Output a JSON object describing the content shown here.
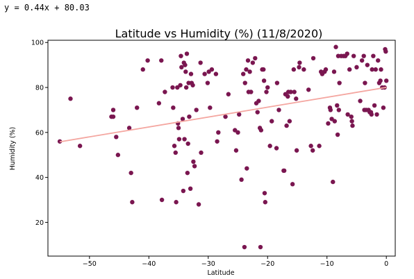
{
  "equation": "y = 0.44x + 80.03",
  "chart_data": {
    "type": "scatter",
    "title": "Latitude vs Humidity (%) (11/8/2020)",
    "xlabel": "Latitude",
    "ylabel": "Humidity (%)",
    "xlim": [
      -57,
      1.5
    ],
    "ylim": [
      5,
      101
    ],
    "xticks": [
      -50,
      -40,
      -30,
      -20,
      -10,
      0
    ],
    "yticks": [
      20,
      40,
      60,
      80,
      100
    ],
    "grid": false,
    "point_color": "#7a1650",
    "regression": {
      "slope": 0.44,
      "intercept": 80.03,
      "x_range": [
        -55,
        0
      ],
      "color": "#f4a6a0"
    },
    "points": [
      [
        -55,
        56
      ],
      [
        -53.2,
        75
      ],
      [
        -51.6,
        54
      ],
      [
        -46.3,
        67
      ],
      [
        -46,
        70
      ],
      [
        -46,
        67
      ],
      [
        -45.5,
        58
      ],
      [
        -45.2,
        50
      ],
      [
        -43.3,
        62
      ],
      [
        -43,
        42
      ],
      [
        -42.8,
        29
      ],
      [
        -42,
        71
      ],
      [
        -41,
        88
      ],
      [
        -40.2,
        92
      ],
      [
        -38.3,
        73
      ],
      [
        -37.9,
        92
      ],
      [
        -37.8,
        30
      ],
      [
        -37.3,
        78
      ],
      [
        -36,
        80
      ],
      [
        -35.9,
        71
      ],
      [
        -35.7,
        54
      ],
      [
        -35.5,
        51
      ],
      [
        -35.4,
        29
      ],
      [
        -35.2,
        80
      ],
      [
        -35.1,
        64
      ],
      [
        -35,
        62
      ],
      [
        -34.9,
        57
      ],
      [
        -34.7,
        81
      ],
      [
        -34.6,
        94
      ],
      [
        -34.5,
        89
      ],
      [
        -34.3,
        66
      ],
      [
        -34.2,
        34
      ],
      [
        -34.1,
        91
      ],
      [
        -34,
        57
      ],
      [
        -33.9,
        90
      ],
      [
        -33.8,
        87
      ],
      [
        -33.7,
        80
      ],
      [
        -33.6,
        95
      ],
      [
        -33.5,
        42
      ],
      [
        -33.4,
        55
      ],
      [
        -33.3,
        82
      ],
      [
        -33.2,
        67
      ],
      [
        -33,
        35
      ],
      [
        -32.9,
        86
      ],
      [
        -32.8,
        82
      ],
      [
        -32.6,
        81
      ],
      [
        -32.5,
        47
      ],
      [
        -32.3,
        45
      ],
      [
        -32,
        70
      ],
      [
        -31.6,
        28
      ],
      [
        -31.3,
        91
      ],
      [
        -31.2,
        51
      ],
      [
        -30.6,
        86
      ],
      [
        -30.1,
        82
      ],
      [
        -29.9,
        87
      ],
      [
        -29.7,
        71
      ],
      [
        -29.4,
        88
      ],
      [
        -28.7,
        86
      ],
      [
        -28.5,
        56
      ],
      [
        -28.3,
        60
      ],
      [
        -27.1,
        67
      ],
      [
        -26.6,
        77
      ],
      [
        -25.5,
        61
      ],
      [
        -25.3,
        52
      ],
      [
        -25,
        60
      ],
      [
        -24.8,
        68
      ],
      [
        -24.4,
        39
      ],
      [
        -24.1,
        86
      ],
      [
        -23.9,
        9
      ],
      [
        -23.8,
        82
      ],
      [
        -23.6,
        88
      ],
      [
        -23.5,
        44
      ],
      [
        -23.3,
        92
      ],
      [
        -23.2,
        78
      ],
      [
        -23,
        87
      ],
      [
        -22.8,
        78
      ],
      [
        -22.5,
        91
      ],
      [
        -22.1,
        93
      ],
      [
        -21.9,
        73
      ],
      [
        -21.7,
        69
      ],
      [
        -21.5,
        74
      ],
      [
        -21.3,
        62
      ],
      [
        -21.2,
        9
      ],
      [
        -21.1,
        61
      ],
      [
        -20.9,
        88
      ],
      [
        -20.7,
        88
      ],
      [
        -20.6,
        83
      ],
      [
        -20.5,
        33
      ],
      [
        -20.4,
        29
      ],
      [
        -20.2,
        78
      ],
      [
        -20,
        80
      ],
      [
        -19.6,
        54
      ],
      [
        -19.3,
        65
      ],
      [
        -18.5,
        53
      ],
      [
        -18.4,
        82
      ],
      [
        -18.1,
        70
      ],
      [
        -17.3,
        43
      ],
      [
        -17.2,
        43
      ],
      [
        -17,
        77
      ],
      [
        -16.8,
        63
      ],
      [
        -16.6,
        76
      ],
      [
        -16.5,
        78
      ],
      [
        -16.3,
        65
      ],
      [
        -16.1,
        78
      ],
      [
        -15.8,
        37
      ],
      [
        -15.6,
        88
      ],
      [
        -15.5,
        78
      ],
      [
        -15.2,
        75
      ],
      [
        -15.1,
        52
      ],
      [
        -14.7,
        89
      ],
      [
        -14.6,
        91
      ],
      [
        -13.9,
        88
      ],
      [
        -13.1,
        79
      ],
      [
        -12.7,
        54
      ],
      [
        -12.4,
        52
      ],
      [
        -12.3,
        93
      ],
      [
        -11.3,
        54
      ],
      [
        -11,
        87
      ],
      [
        -10.8,
        86
      ],
      [
        -10.4,
        87
      ],
      [
        -10.2,
        88
      ],
      [
        -9.8,
        64
      ],
      [
        -9.5,
        71
      ],
      [
        -9.4,
        70
      ],
      [
        -9.2,
        66
      ],
      [
        -9,
        38
      ],
      [
        -8.8,
        87
      ],
      [
        -8.7,
        65
      ],
      [
        -8.5,
        98
      ],
      [
        -8.3,
        72
      ],
      [
        -8.2,
        59
      ],
      [
        -8.1,
        94
      ],
      [
        -8,
        70
      ],
      [
        -7.9,
        82
      ],
      [
        -7.6,
        94
      ],
      [
        -7.2,
        94
      ],
      [
        -6.9,
        94
      ],
      [
        -6.6,
        95
      ],
      [
        -6.5,
        68
      ],
      [
        -6.2,
        88
      ],
      [
        -5.9,
        67
      ],
      [
        -5.8,
        65
      ],
      [
        -5.7,
        63
      ],
      [
        -5.5,
        94
      ],
      [
        -5,
        89
      ],
      [
        -4.4,
        74
      ],
      [
        -4.1,
        92
      ],
      [
        -3.8,
        94
      ],
      [
        -3.7,
        70
      ],
      [
        -3.6,
        82
      ],
      [
        -3.4,
        70
      ],
      [
        -3.2,
        90
      ],
      [
        -3,
        70
      ],
      [
        -2.8,
        69
      ],
      [
        -2.6,
        69
      ],
      [
        -2.5,
        68
      ],
      [
        -2.4,
        88
      ],
      [
        -2.2,
        94
      ],
      [
        -2,
        72
      ],
      [
        -1.8,
        88
      ],
      [
        -1.6,
        68
      ],
      [
        -1.4,
        92
      ],
      [
        -1.2,
        82
      ],
      [
        -1,
        83
      ],
      [
        -0.9,
        88
      ],
      [
        -0.7,
        80
      ],
      [
        -0.5,
        71
      ],
      [
        -0.3,
        80
      ],
      [
        -0.2,
        97
      ],
      [
        -0.1,
        96
      ],
      [
        0,
        83
      ]
    ]
  }
}
